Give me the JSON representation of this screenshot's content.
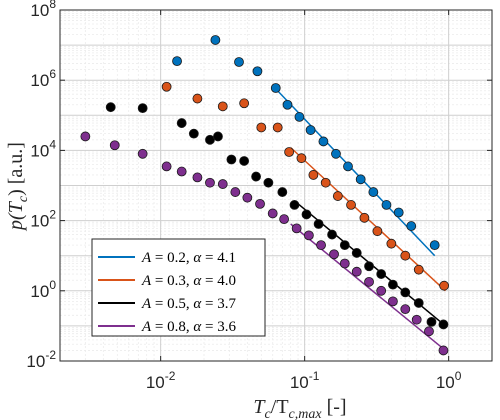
{
  "chart_data": {
    "type": "scatter",
    "xscale": "log",
    "yscale": "log",
    "xlim": [
      0.002,
      2
    ],
    "ylim": [
      0.01,
      100000000
    ],
    "grid": true,
    "minor_grid": true,
    "xlabel": {
      "main": "T",
      "sub1": "c",
      "mid": "/T",
      "sub2": "c,max",
      "unit": " [-]"
    },
    "ylabel": {
      "main": "p(T",
      "sub": "c",
      "unit": ") [a.u.]"
    },
    "xticks": [
      {
        "value": 0.01,
        "base": "10",
        "exp": "-2"
      },
      {
        "value": 0.1,
        "base": "10",
        "exp": "-1"
      },
      {
        "value": 1,
        "base": "10",
        "exp": "0"
      }
    ],
    "yticks": [
      {
        "value": 0.01,
        "base": "10",
        "exp": "-2"
      },
      {
        "value": 1,
        "base": "10",
        "exp": "0"
      },
      {
        "value": 100,
        "base": "10",
        "exp": "2"
      },
      {
        "value": 10000,
        "base": "10",
        "exp": "4"
      },
      {
        "value": 1000000,
        "base": "10",
        "exp": "6"
      },
      {
        "value": 100000000,
        "base": "10",
        "exp": "8"
      }
    ],
    "legend_position": "bottom-left",
    "series": [
      {
        "name": "A = 0.2, α = 4.1",
        "legend": {
          "a": "0.2",
          "alpha": "4.1"
        },
        "color": "#0072BD",
        "x": [
          0.013,
          0.024,
          0.035,
          0.047,
          0.063,
          0.076,
          0.092,
          0.11,
          0.135,
          0.165,
          0.2,
          0.245,
          0.3,
          0.37,
          0.45,
          0.55,
          0.8
        ],
        "y": [
          3500000,
          14000000,
          3300000,
          1800000,
          600000,
          200000,
          90000,
          38000,
          18000,
          8000,
          3500,
          1500,
          650,
          280,
          170,
          70,
          20
        ],
        "fit": {
          "x": [
            0.06,
            0.8
          ],
          "y": [
            700000,
            10
          ]
        }
      },
      {
        "name": "A = 0.3, α = 4.0",
        "legend": {
          "a": "0.3",
          "alpha": "4.0"
        },
        "color": "#D95319",
        "x": [
          0.011,
          0.018,
          0.027,
          0.038,
          0.05,
          0.065,
          0.078,
          0.095,
          0.115,
          0.14,
          0.17,
          0.21,
          0.26,
          0.32,
          0.4,
          0.5,
          0.62,
          0.93
        ],
        "y": [
          650000,
          300000,
          180000,
          220000,
          45000,
          45000,
          9000,
          6000,
          2000,
          1200,
          500,
          280,
          120,
          50,
          22,
          10,
          4,
          1.4
        ],
        "fit": {
          "x": [
            0.08,
            0.95
          ],
          "y": [
            12000,
            1
          ]
        }
      },
      {
        "name": "A = 0.5, α = 3.7",
        "legend": {
          "a": "0.5",
          "alpha": "3.7"
        },
        "color": "#000000",
        "x": [
          0.0045,
          0.0075,
          0.014,
          0.017,
          0.022,
          0.025,
          0.031,
          0.038,
          0.046,
          0.056,
          0.07,
          0.085,
          0.103,
          0.125,
          0.155,
          0.19,
          0.23,
          0.28,
          0.34,
          0.41,
          0.5,
          0.62,
          0.76,
          0.92
        ],
        "y": [
          170000,
          160000,
          60000,
          30000,
          20000,
          25000,
          5500,
          5000,
          1800,
          1200,
          650,
          280,
          150,
          80,
          40,
          20,
          12,
          5,
          3,
          1.5,
          0.9,
          0.45,
          0.13,
          0.11
        ],
        "fit": {
          "x": [
            0.09,
            0.95
          ],
          "y": [
            300,
            0.1
          ]
        }
      },
      {
        "name": "A = 0.8, α = 3.6",
        "legend": {
          "a": "0.8",
          "alpha": "3.6"
        },
        "color": "#7E2F8E",
        "x": [
          0.003,
          0.0048,
          0.0075,
          0.011,
          0.014,
          0.018,
          0.022,
          0.027,
          0.033,
          0.04,
          0.049,
          0.06,
          0.072,
          0.088,
          0.107,
          0.13,
          0.16,
          0.19,
          0.23,
          0.28,
          0.34,
          0.41,
          0.5,
          0.6,
          0.73,
          0.92
        ],
        "y": [
          25000,
          14000,
          8000,
          3500,
          2500,
          1700,
          1200,
          1100,
          650,
          450,
          300,
          160,
          110,
          60,
          38,
          20,
          11,
          6,
          3.5,
          1.8,
          1,
          0.5,
          0.3,
          0.15,
          0.07,
          0.02
        ],
        "fit": {
          "x": [
            0.08,
            0.95
          ],
          "y": [
            80,
            0.02
          ]
        }
      }
    ]
  }
}
